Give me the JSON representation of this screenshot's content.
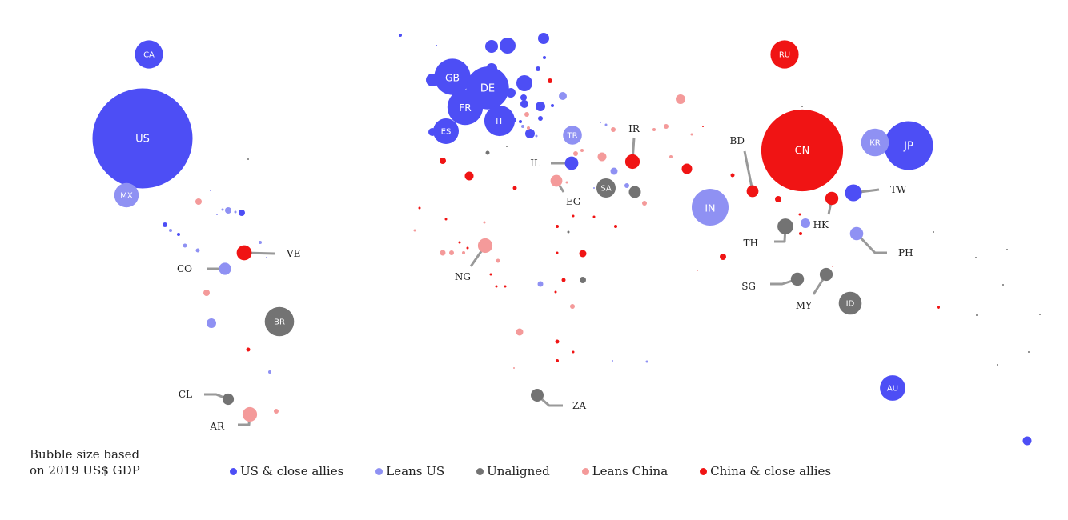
{
  "colors": {
    "us_close": "#4d4ef5",
    "leans_us": "#8f91f3",
    "unaligned": "#737373",
    "leans_china": "#f49a9a",
    "china_close": "#f01414"
  },
  "size_note": [
    "Bubble size based",
    "on 2019 US$ GDP"
  ],
  "legend": [
    {
      "label": "US & close allies",
      "category": "us_close"
    },
    {
      "label": "Leans US",
      "category": "leans_us"
    },
    {
      "label": "Unaligned",
      "category": "unaligned"
    },
    {
      "label": "Leans China",
      "category": "leans_china"
    },
    {
      "label": "China & close allies",
      "category": "china_close"
    }
  ],
  "countries": [
    {
      "code": "US",
      "category": "us_close",
      "gdp": 21.4
    },
    {
      "code": "CA",
      "category": "us_close",
      "gdp": 1.7
    },
    {
      "code": "MX",
      "category": "leans_us",
      "gdp": 1.26
    },
    {
      "code": "GB",
      "category": "us_close",
      "gdp": 2.8
    },
    {
      "code": "DE",
      "category": "us_close",
      "gdp": 3.9
    },
    {
      "code": "FR",
      "category": "us_close",
      "gdp": 2.7
    },
    {
      "code": "IT",
      "category": "us_close",
      "gdp": 2.0
    },
    {
      "code": "ES",
      "category": "us_close",
      "gdp": 1.4
    },
    {
      "code": "TR",
      "category": "leans_us",
      "gdp": 0.76
    },
    {
      "code": "RU",
      "category": "china_close",
      "gdp": 1.7
    },
    {
      "code": "CN",
      "category": "china_close",
      "gdp": 14.3
    },
    {
      "code": "JP",
      "category": "us_close",
      "gdp": 5.1
    },
    {
      "code": "KR",
      "category": "leans_us",
      "gdp": 1.65
    },
    {
      "code": "IN",
      "category": "leans_us",
      "gdp": 2.9
    },
    {
      "code": "SA",
      "category": "unaligned",
      "gdp": 0.79
    },
    {
      "code": "BR",
      "category": "unaligned",
      "gdp": 1.84
    },
    {
      "code": "ID",
      "category": "unaligned",
      "gdp": 1.12
    },
    {
      "code": "AU",
      "category": "us_close",
      "gdp": 1.39
    },
    {
      "code": "IR",
      "category": "china_close",
      "gdp": 0.45
    },
    {
      "code": "IL",
      "category": "us_close",
      "gdp": 0.39
    },
    {
      "code": "EG",
      "category": "leans_china",
      "gdp": 0.3
    },
    {
      "code": "BD",
      "category": "china_close",
      "gdp": 0.3
    },
    {
      "code": "TW",
      "category": "us_close",
      "gdp": 0.61
    },
    {
      "code": "HK",
      "category": "china_close",
      "gdp": 0.37
    },
    {
      "code": "TH",
      "category": "unaligned",
      "gdp": 0.54
    },
    {
      "code": "PH",
      "category": "leans_us",
      "gdp": 0.38
    },
    {
      "code": "SG",
      "category": "unaligned",
      "gdp": 0.37
    },
    {
      "code": "MY",
      "category": "unaligned",
      "gdp": 0.36
    },
    {
      "code": "VE",
      "category": "china_close",
      "gdp": 0.48
    },
    {
      "code": "CO",
      "category": "leans_us",
      "gdp": 0.32
    },
    {
      "code": "NG",
      "category": "leans_china",
      "gdp": 0.45
    },
    {
      "code": "ZA",
      "category": "unaligned",
      "gdp": 0.35
    },
    {
      "code": "CL",
      "category": "unaligned",
      "gdp": 0.28
    },
    {
      "code": "AR",
      "category": "leans_china",
      "gdp": 0.45
    }
  ]
}
